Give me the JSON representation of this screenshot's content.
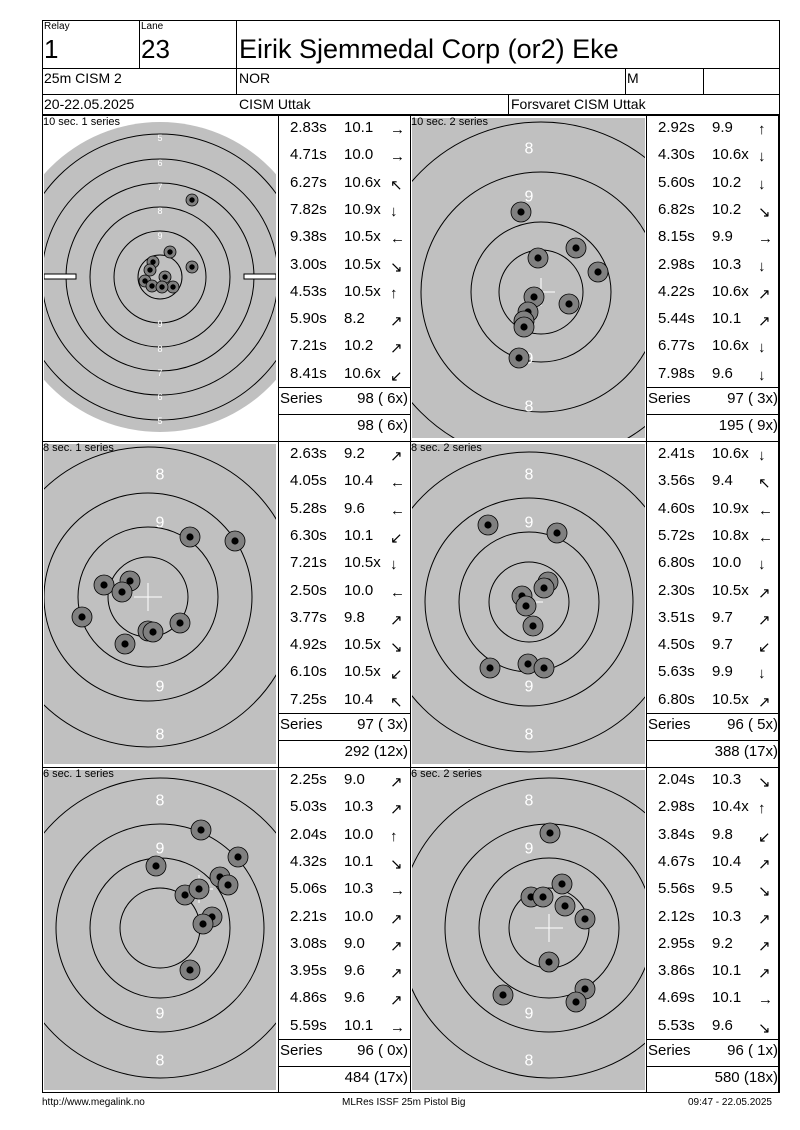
{
  "header": {
    "relay_label": "Relay",
    "relay_value": "1",
    "lane_label": "Lane",
    "lane_value": "23",
    "name": "Eirik Sjemmedal Corp (or2) Eke",
    "event": "25m CISM 2",
    "nation": "NOR",
    "gender": "M",
    "date": "20-22.05.2025",
    "competition": "CISM Uttak",
    "organizer": "Forsvaret CISM Uttak"
  },
  "panels": [
    {
      "title": "10 sec. 1 series",
      "series_label": "Series",
      "series_score": "98 ( 6x)",
      "running_total": "98 ( 6x)",
      "shots": [
        [
          "2.83s",
          "10.1",
          "e"
        ],
        [
          "4.71s",
          "10.0",
          "e"
        ],
        [
          "6.27s",
          "10.6x",
          "nw"
        ],
        [
          "7.82s",
          "10.9x",
          "s"
        ],
        [
          "9.38s",
          "10.5x",
          "w"
        ],
        [
          "3.00s",
          "10.5x",
          "se"
        ],
        [
          "4.53s",
          "10.5x",
          "n"
        ],
        [
          "5.90s",
          "8.2",
          "ne"
        ],
        [
          "7.21s",
          "10.2",
          "ne"
        ],
        [
          "8.41s",
          "10.6x",
          "sw"
        ]
      ]
    },
    {
      "title": "10 sec. 2 series",
      "series_label": "Series",
      "series_score": "97 ( 3x)",
      "running_total": "195 ( 9x)",
      "shots": [
        [
          "2.92s",
          "9.9",
          "n"
        ],
        [
          "4.30s",
          "10.6x",
          "s"
        ],
        [
          "5.60s",
          "10.2",
          "s"
        ],
        [
          "6.82s",
          "10.2",
          "se"
        ],
        [
          "8.15s",
          "9.9",
          "e"
        ],
        [
          "2.98s",
          "10.3",
          "s"
        ],
        [
          "4.22s",
          "10.6x",
          "ne"
        ],
        [
          "5.44s",
          "10.1",
          "ne"
        ],
        [
          "6.77s",
          "10.6x",
          "s"
        ],
        [
          "7.98s",
          "9.6",
          "s"
        ]
      ]
    },
    {
      "title": "8 sec. 1 series",
      "series_label": "Series",
      "series_score": "97 ( 3x)",
      "running_total": "292 (12x)",
      "shots": [
        [
          "2.63s",
          "9.2",
          "ne"
        ],
        [
          "4.05s",
          "10.4",
          "w"
        ],
        [
          "5.28s",
          "9.6",
          "w"
        ],
        [
          "6.30s",
          "10.1",
          "sw"
        ],
        [
          "7.21s",
          "10.5x",
          "s"
        ],
        [
          "2.50s",
          "10.0",
          "w"
        ],
        [
          "3.77s",
          "9.8",
          "ne"
        ],
        [
          "4.92s",
          "10.5x",
          "se"
        ],
        [
          "6.10s",
          "10.5x",
          "sw"
        ],
        [
          "7.25s",
          "10.4",
          "nw"
        ]
      ]
    },
    {
      "title": "8 sec. 2 series",
      "series_label": "Series",
      "series_score": "96 ( 5x)",
      "running_total": "388 (17x)",
      "shots": [
        [
          "2.41s",
          "10.6x",
          "s"
        ],
        [
          "3.56s",
          "9.4",
          "nw"
        ],
        [
          "4.60s",
          "10.9x",
          "w"
        ],
        [
          "5.72s",
          "10.8x",
          "w"
        ],
        [
          "6.80s",
          "10.0",
          "s"
        ],
        [
          "2.30s",
          "10.5x",
          "ne"
        ],
        [
          "3.51s",
          "9.7",
          "ne"
        ],
        [
          "4.50s",
          "9.7",
          "sw"
        ],
        [
          "5.63s",
          "9.9",
          "s"
        ],
        [
          "6.80s",
          "10.5x",
          "ne"
        ]
      ]
    },
    {
      "title": "6 sec. 1 series",
      "series_label": "Series",
      "series_score": "96 ( 0x)",
      "running_total": "484 (17x)",
      "shots": [
        [
          "2.25s",
          "9.0",
          "ne"
        ],
        [
          "5.03s",
          "10.3",
          "ne"
        ],
        [
          "2.04s",
          "10.0",
          "n"
        ],
        [
          "4.32s",
          "10.1",
          "se"
        ],
        [
          "5.06s",
          "10.3",
          "e"
        ],
        [
          "2.21s",
          "10.0",
          "ne"
        ],
        [
          "3.08s",
          "9.0",
          "ne"
        ],
        [
          "3.95s",
          "9.6",
          "ne"
        ],
        [
          "4.86s",
          "9.6",
          "ne"
        ],
        [
          "5.59s",
          "10.1",
          "e"
        ]
      ]
    },
    {
      "title": "6 sec. 2 series",
      "series_label": "Series",
      "series_score": "96 ( 1x)",
      "running_total": "580 (18x)",
      "shots": [
        [
          "2.04s",
          "10.3",
          "se"
        ],
        [
          "2.98s",
          "10.4x",
          "n"
        ],
        [
          "3.84s",
          "9.8",
          "sw"
        ],
        [
          "4.67s",
          "10.4",
          "ne"
        ],
        [
          "5.56s",
          "9.5",
          "se"
        ],
        [
          "2.12s",
          "10.3",
          "ne"
        ],
        [
          "2.95s",
          "9.2",
          "ne"
        ],
        [
          "3.86s",
          "10.1",
          "ne"
        ],
        [
          "4.69s",
          "10.1",
          "e"
        ],
        [
          "5.53s",
          "9.6",
          "se"
        ]
      ]
    }
  ],
  "targets": [
    {
      "ring_labels": [
        "5",
        "6",
        "7",
        "8",
        "9"
      ]
    },
    {
      "ring_labels": [
        "8",
        "9"
      ]
    },
    {
      "ring_labels": [
        "8",
        "9"
      ]
    },
    {
      "ring_labels": [
        "8",
        "9"
      ]
    },
    {
      "ring_labels": [
        "8",
        "9"
      ]
    },
    {
      "ring_labels": [
        "8",
        "9"
      ]
    }
  ],
  "footer": {
    "left": "http://www.megalink.no",
    "center": "MLRes ISSF 25m Pistol Big",
    "right": "09:47 - 22.05.2025"
  },
  "colors": {
    "target_bg": "#c0c0c0",
    "shot_ring": "#808080",
    "shot_core": "#000000",
    "line": "#000000"
  }
}
